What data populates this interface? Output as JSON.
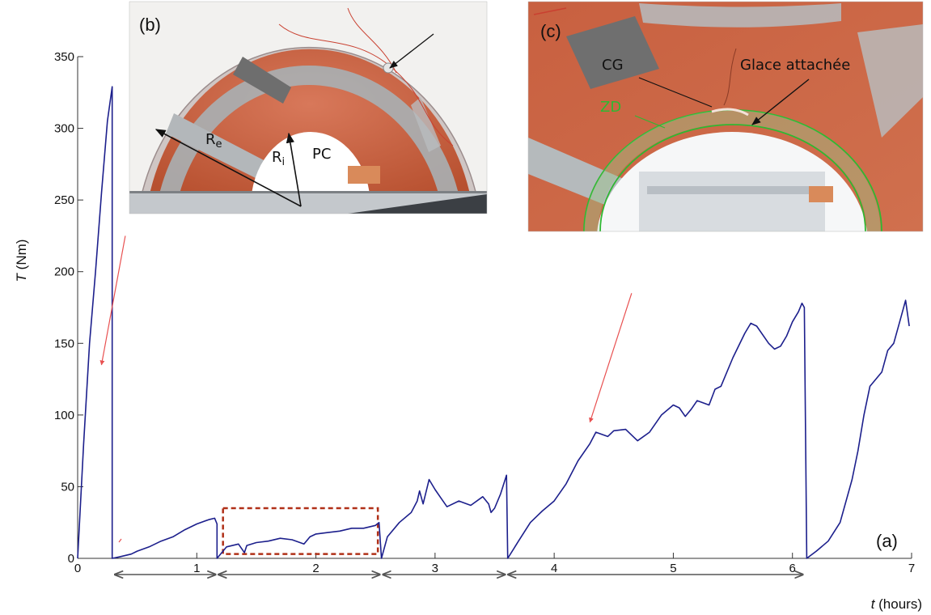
{
  "chart_data": {
    "type": "line",
    "panel_label": "(a)",
    "ylabel_var": "T",
    "ylabel_unit": " (Nm)",
    "xlabel_var": "t",
    "xlabel_unit": " (hours)",
    "xlim": [
      0,
      7
    ],
    "ylim": [
      0,
      350
    ],
    "xticks": [
      0,
      1,
      2,
      3,
      4,
      5,
      6,
      7
    ],
    "yticks": [
      0,
      50,
      100,
      150,
      200,
      250,
      300,
      350
    ],
    "grid": false,
    "line_color": "#1c1f8c",
    "series": [
      {
        "values": [
          [
            0.0,
            0
          ],
          [
            0.05,
            80
          ],
          [
            0.1,
            150
          ],
          [
            0.15,
            200
          ],
          [
            0.2,
            255
          ],
          [
            0.25,
            305
          ],
          [
            0.29,
            329
          ],
          [
            0.29,
            0
          ],
          [
            0.35,
            1
          ],
          [
            0.45,
            3
          ],
          [
            0.5,
            5
          ],
          [
            0.6,
            8
          ],
          [
            0.7,
            12
          ],
          [
            0.8,
            15
          ],
          [
            0.9,
            20
          ],
          [
            1.0,
            24
          ],
          [
            1.1,
            27
          ],
          [
            1.15,
            28
          ],
          [
            1.17,
            24
          ],
          [
            1.17,
            0
          ],
          [
            1.25,
            8
          ],
          [
            1.35,
            10
          ],
          [
            1.4,
            4
          ],
          [
            1.42,
            9
          ],
          [
            1.5,
            11
          ],
          [
            1.6,
            12
          ],
          [
            1.7,
            14
          ],
          [
            1.8,
            13
          ],
          [
            1.9,
            10
          ],
          [
            1.95,
            15
          ],
          [
            2.0,
            17
          ],
          [
            2.1,
            18
          ],
          [
            2.2,
            19
          ],
          [
            2.3,
            21
          ],
          [
            2.4,
            21
          ],
          [
            2.5,
            23
          ],
          [
            2.53,
            25
          ],
          [
            2.55,
            0
          ],
          [
            2.6,
            15
          ],
          [
            2.7,
            25
          ],
          [
            2.8,
            32
          ],
          [
            2.85,
            40
          ],
          [
            2.87,
            47
          ],
          [
            2.9,
            38
          ],
          [
            2.95,
            55
          ],
          [
            3.0,
            48
          ],
          [
            3.05,
            42
          ],
          [
            3.1,
            36
          ],
          [
            3.2,
            40
          ],
          [
            3.3,
            37
          ],
          [
            3.4,
            43
          ],
          [
            3.45,
            38
          ],
          [
            3.47,
            32
          ],
          [
            3.5,
            35
          ],
          [
            3.55,
            45
          ],
          [
            3.6,
            58
          ],
          [
            3.61,
            0
          ],
          [
            3.7,
            12
          ],
          [
            3.8,
            25
          ],
          [
            3.9,
            33
          ],
          [
            4.0,
            40
          ],
          [
            4.1,
            52
          ],
          [
            4.2,
            68
          ],
          [
            4.3,
            80
          ],
          [
            4.35,
            88
          ],
          [
            4.45,
            85
          ],
          [
            4.5,
            89
          ],
          [
            4.6,
            90
          ],
          [
            4.65,
            86
          ],
          [
            4.7,
            82
          ],
          [
            4.8,
            88
          ],
          [
            4.9,
            100
          ],
          [
            5.0,
            107
          ],
          [
            5.05,
            105
          ],
          [
            5.1,
            99
          ],
          [
            5.15,
            104
          ],
          [
            5.2,
            110
          ],
          [
            5.3,
            107
          ],
          [
            5.35,
            118
          ],
          [
            5.4,
            120
          ],
          [
            5.5,
            140
          ],
          [
            5.6,
            157
          ],
          [
            5.65,
            164
          ],
          [
            5.7,
            162
          ],
          [
            5.8,
            150
          ],
          [
            5.85,
            146
          ],
          [
            5.9,
            148
          ],
          [
            5.95,
            155
          ],
          [
            6.0,
            165
          ],
          [
            6.05,
            172
          ],
          [
            6.08,
            178
          ],
          [
            6.1,
            175
          ],
          [
            6.12,
            0
          ],
          [
            6.2,
            5
          ],
          [
            6.3,
            12
          ],
          [
            6.4,
            25
          ],
          [
            6.5,
            55
          ],
          [
            6.55,
            75
          ],
          [
            6.6,
            100
          ],
          [
            6.65,
            120
          ],
          [
            6.7,
            125
          ],
          [
            6.75,
            130
          ],
          [
            6.8,
            145
          ],
          [
            6.85,
            150
          ],
          [
            6.9,
            165
          ],
          [
            6.95,
            180
          ],
          [
            6.98,
            162
          ]
        ]
      }
    ],
    "interval_arrows": [
      [
        0.3,
        1.17
      ],
      [
        1.17,
        2.55
      ],
      [
        2.55,
        3.6
      ],
      [
        3.6,
        6.1
      ]
    ],
    "highlight_box": {
      "x": [
        1.22,
        2.52
      ],
      "y": [
        3,
        35
      ],
      "color": "#b03018"
    },
    "red_arrows": [
      {
        "from": [
          0.4,
          225
        ],
        "to": [
          0.2,
          135
        ]
      },
      {
        "from": [
          4.65,
          185
        ],
        "to": [
          4.3,
          95
        ]
      }
    ]
  },
  "insets": {
    "b": {
      "label": "(b)",
      "labels": {
        "re": "R",
        "re_sub": "e",
        "ri": "R",
        "ri_sub": "i",
        "pc": "PC"
      }
    },
    "c": {
      "label": "(c)",
      "labels": {
        "cg": "CG",
        "glace": "Glace attachée",
        "zd": "ZD"
      },
      "zd_color": "#2fb832"
    }
  }
}
